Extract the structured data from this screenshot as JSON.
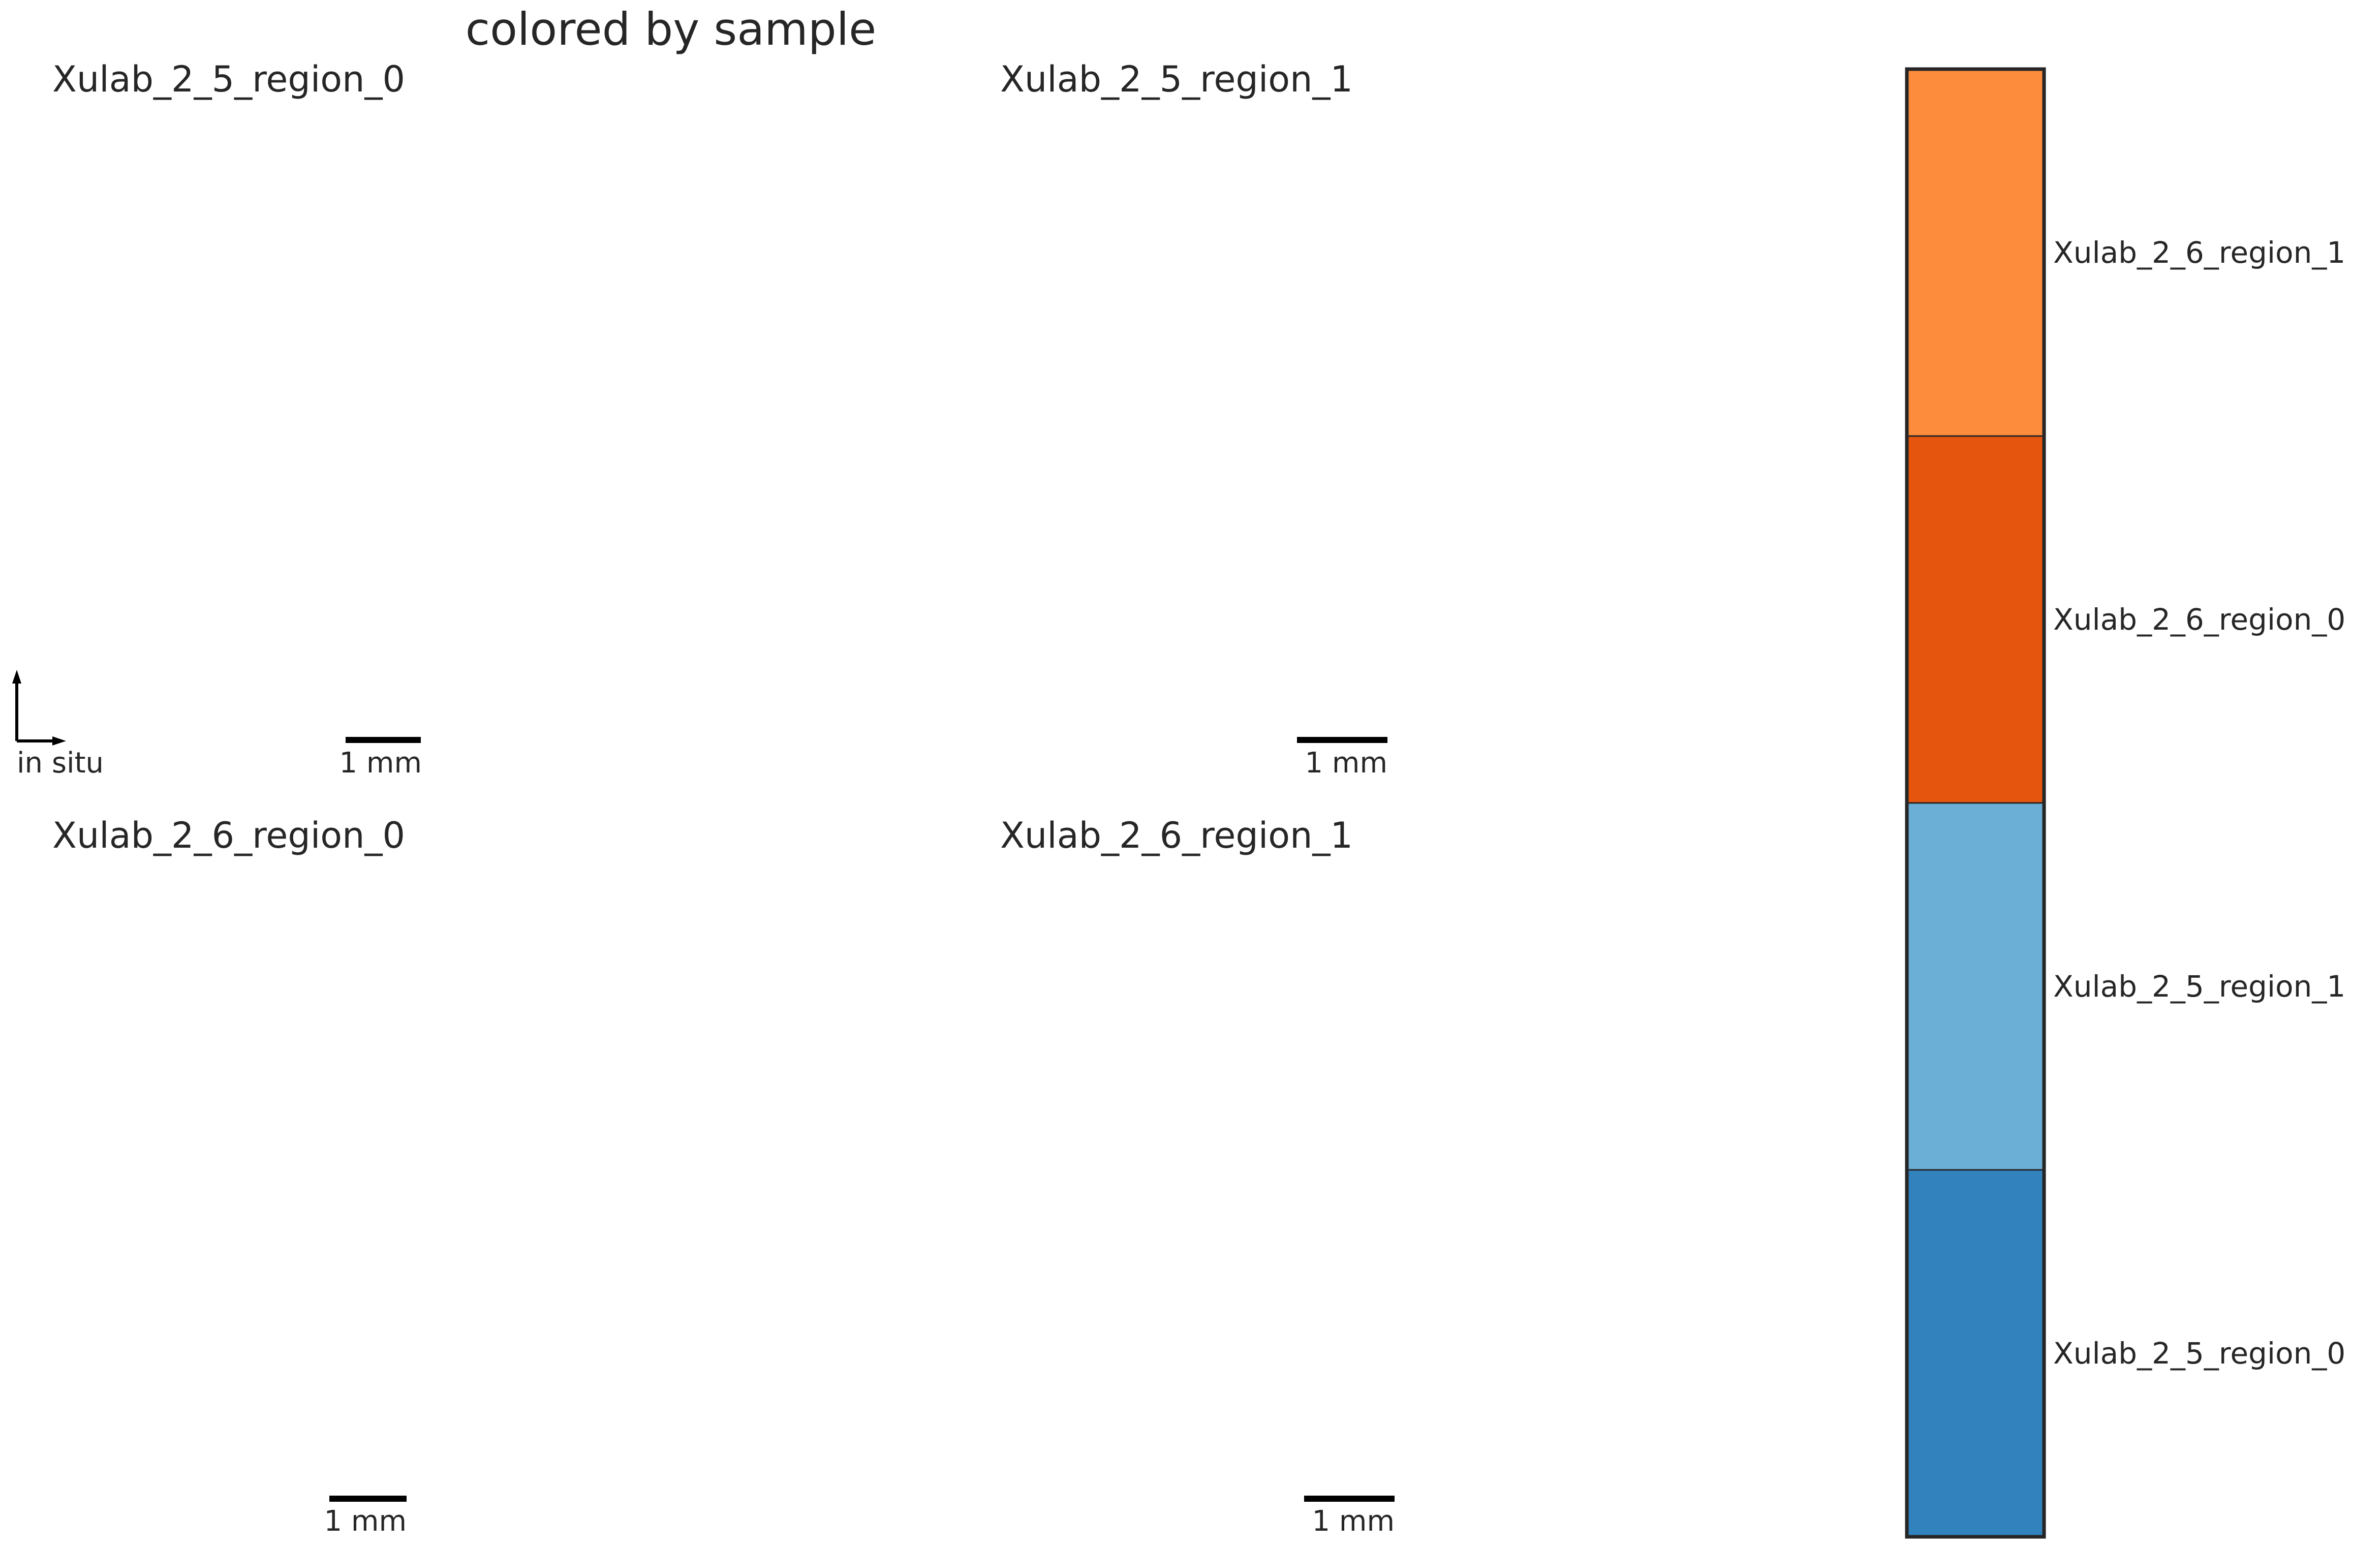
{
  "figure": {
    "title": "colored by sample"
  },
  "chart_data": {
    "type": "scatter",
    "title": "colored by sample",
    "panels": [
      {
        "title": "Xulab_2_5_region_0",
        "color": "#3182bd",
        "scalebar": "1 mm",
        "coord_label": "in situ"
      },
      {
        "title": "Xulab_2_5_region_1",
        "color": "#6baed6",
        "scalebar": "1 mm"
      },
      {
        "title": "Xulab_2_6_region_0",
        "color": "#e6550d",
        "scalebar": "1 mm"
      },
      {
        "title": "Xulab_2_6_region_1",
        "color": "#fd8d3c",
        "scalebar": "1 mm"
      }
    ],
    "legend": {
      "placement": "right",
      "entries": [
        {
          "label": "Xulab_2_6_region_1",
          "color": "#fd8d3c"
        },
        {
          "label": "Xulab_2_6_region_0",
          "color": "#e6550d"
        },
        {
          "label": "Xulab_2_5_region_1",
          "color": "#6baed6"
        },
        {
          "label": "Xulab_2_5_region_0",
          "color": "#3182bd"
        }
      ]
    }
  }
}
